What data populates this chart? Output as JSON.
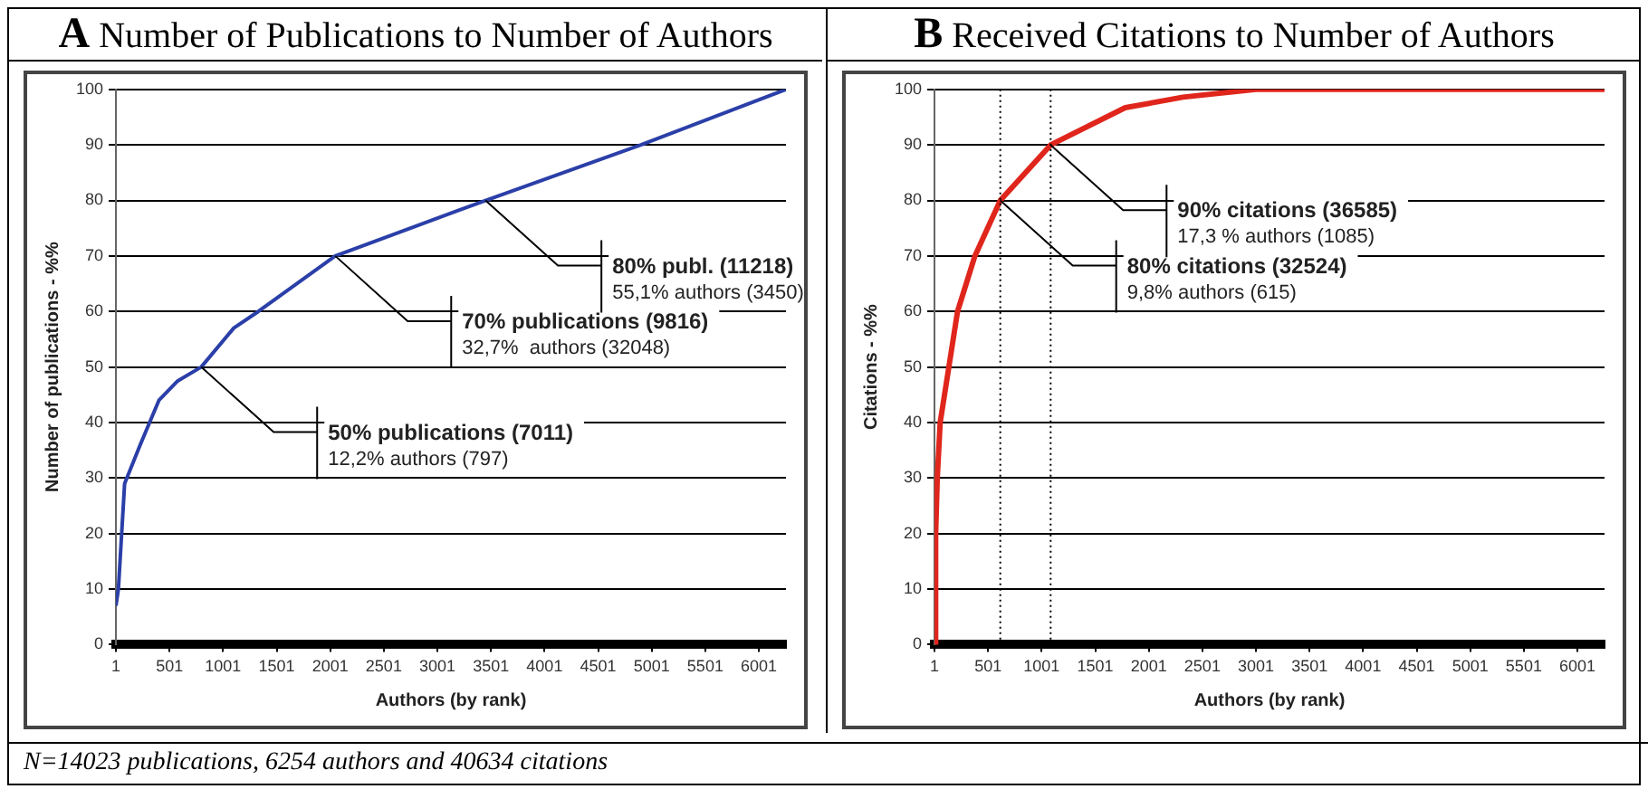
{
  "chart_data": [
    {
      "type": "line",
      "title": "A Number of Publications to Number of Authors",
      "xlabel": "Authors (by rank)",
      "ylabel": "Number of publications - %%",
      "series": [
        {
          "color": "#2b3fa8",
          "x": [
            1,
            24,
            82,
            228,
            402,
            578,
            797,
            1100,
            1330,
            2048,
            3450,
            4900,
            6254
          ],
          "values": [
            7,
            10,
            29,
            36,
            44,
            47.5,
            50,
            57,
            60,
            70,
            80,
            90,
            100
          ]
        }
      ],
      "xlim": [
        1,
        6254
      ],
      "xticks": [
        1,
        501,
        1001,
        1501,
        2001,
        2501,
        3001,
        3501,
        4001,
        4501,
        5001,
        5501,
        6001
      ],
      "ylim": [
        0,
        100
      ],
      "yticks": [
        0,
        10,
        20,
        30,
        40,
        50,
        60,
        70,
        80,
        90,
        100
      ],
      "grid": "y",
      "legend": false,
      "marker": "none",
      "line_style": "solid",
      "annotations": [
        {
          "text": "50% publications (7011)\n12,2% authors (797)",
          "x": 797,
          "y": 50
        },
        {
          "text": "70% publications (9816)\n32,7%  authors (32048)",
          "x": 2048,
          "y": 70
        },
        {
          "text": "80% publ. (11218)\n55,1% authors (3450)",
          "x": 3450,
          "y": 80
        },
        "N=14023 publications, 6254 authors and 40634 citations"
      ]
    },
    {
      "type": "line",
      "title": "B Received Citations to Number of Authors",
      "xlabel": "Authors (by rank)",
      "ylabel": "Citations - %%",
      "series": [
        {
          "color": "#e0261c",
          "x": [
            1,
            12,
            27,
            54,
            135,
            216,
            378,
            615,
            1085,
            1781,
            2320,
            3000,
            6254
          ],
          "values": [
            0,
            20,
            30,
            40,
            50,
            60,
            70,
            80,
            90,
            96.7,
            98.6,
            100,
            100
          ]
        }
      ],
      "xlim": [
        1,
        6254
      ],
      "xticks": [
        1,
        501,
        1001,
        1501,
        2001,
        2501,
        3001,
        3501,
        4001,
        4501,
        5001,
        5501,
        6001
      ],
      "ylim": [
        0,
        100
      ],
      "yticks": [
        0,
        10,
        20,
        30,
        40,
        50,
        60,
        70,
        80,
        90,
        100
      ],
      "grid": "y",
      "legend": false,
      "marker": "none",
      "line_style": "solid",
      "ref_lines": [
        {
          "axis": "x",
          "value": 615,
          "line_style": "dotted"
        },
        {
          "axis": "x",
          "value": 1085,
          "line_style": "dotted"
        }
      ],
      "annotations": [
        {
          "text": "80% citations (32524)\n9,8% authors (615)",
          "x": 615,
          "y": 80
        },
        {
          "text": "90% citations (36585)\n17,3 % authors (1085)",
          "x": 1085,
          "y": 90
        }
      ]
    }
  ]
}
